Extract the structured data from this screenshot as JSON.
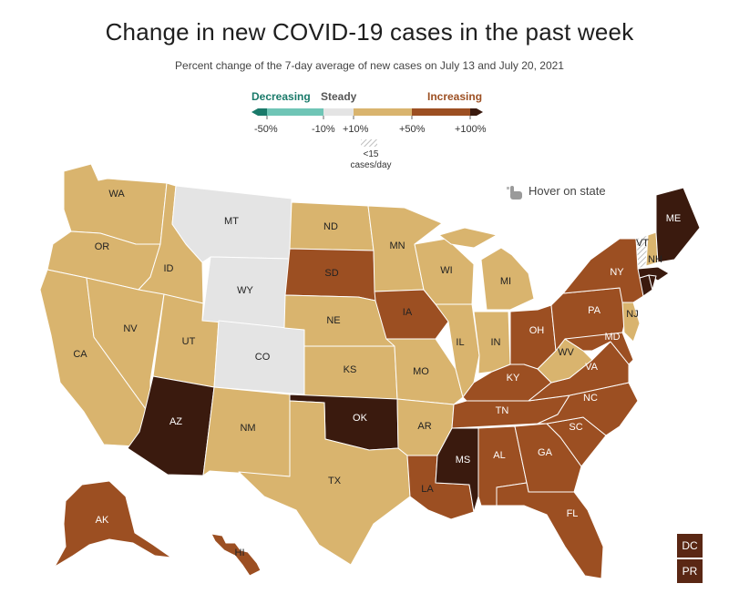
{
  "header": {
    "title": "Change in new COVID-19 cases in the past week",
    "subtitle": "Percent change of the 7-day average of new cases on July 13 and July 20, 2021"
  },
  "legend": {
    "decreasing_label": "Decreasing",
    "steady_label": "Steady",
    "increasing_label": "Increasing",
    "ticks": [
      "-50%",
      "-10%",
      "+10%",
      "+50%",
      "+100%"
    ],
    "small_cases_line1": "<15",
    "small_cases_line2": "cases/day",
    "colors": {
      "decreasing_dark": "#1a7a6a",
      "decreasing": "#6fc5b6",
      "steady": "#e4e4e4",
      "increasing_light": "#d9b46e",
      "increasing": "#9c4f22",
      "increasing_dark": "#5a2714",
      "increasing_max": "#3a1a0e"
    }
  },
  "hover_hint": {
    "label": "Hover on state",
    "icon": "pointer-hand-icon"
  },
  "buttons": {
    "dc": "DC",
    "pr": "PR"
  },
  "states": {
    "WA": "WA",
    "OR": "OR",
    "CA": "CA",
    "ID": "ID",
    "NV": "NV",
    "UT": "UT",
    "AZ": "AZ",
    "MT": "MT",
    "WY": "WY",
    "CO": "CO",
    "NM": "NM",
    "ND": "ND",
    "SD": "SD",
    "NE": "NE",
    "KS": "KS",
    "OK": "OK",
    "TX": "TX",
    "MN": "MN",
    "IA": "IA",
    "MO": "MO",
    "AR": "AR",
    "LA": "LA",
    "WI": "WI",
    "IL": "IL",
    "MI": "MI",
    "IN": "IN",
    "OH": "OH",
    "KY": "KY",
    "TN": "TN",
    "MS": "MS",
    "AL": "AL",
    "GA": "GA",
    "FL": "FL",
    "SC": "SC",
    "NC": "NC",
    "VA": "VA",
    "WV": "WV",
    "PA": "PA",
    "NY": "NY",
    "NJ": "NJ",
    "MD": "MD",
    "ME": "ME",
    "VT": "VT",
    "NH": "NH",
    "AK": "AK",
    "HI": "HI"
  },
  "map_data": {
    "category_by_state": {
      "WA": "+10% to +50%",
      "OR": "+10% to +50%",
      "CA": "+10% to +50%",
      "ID": "+10% to +50%",
      "NV": "+10% to +50%",
      "UT": "+10% to +50%",
      "AZ": "above +100%",
      "MT": "steady",
      "WY": "steady",
      "CO": "steady",
      "NM": "+10% to +50%",
      "ND": "+10% to +50%",
      "SD": "+50% to +100%",
      "NE": "+10% to +50%",
      "KS": "+10% to +50%",
      "OK": "above +100%",
      "TX": "+10% to +50%",
      "MN": "+10% to +50%",
      "IA": "+50% to +100%",
      "MO": "+10% to +50%",
      "AR": "+10% to +50%",
      "LA": "+50% to +100%",
      "WI": "+10% to +50%",
      "IL": "+10% to +50%",
      "MI": "+10% to +50%",
      "IN": "+10% to +50%",
      "OH": "+50% to +100%",
      "KY": "+50% to +100%",
      "TN": "+50% to +100%",
      "MS": "above +100%",
      "AL": "+50% to +100%",
      "GA": "+50% to +100%",
      "FL": "+50% to +100%",
      "SC": "+50% to +100%",
      "NC": "+50% to +100%",
      "VA": "+50% to +100%",
      "WV": "+10% to +50%",
      "PA": "+50% to +100%",
      "NY": "+50% to +100%",
      "NJ": "+10% to +50%",
      "MD": "+50% to +100%",
      "ME": "above +100%",
      "VT": "<15 cases/day",
      "NH": "+10% to +50%",
      "AK": "+50% to +100%",
      "HI": "+50% to +100%",
      "DC": "above +100%",
      "PR": "above +100%"
    }
  }
}
